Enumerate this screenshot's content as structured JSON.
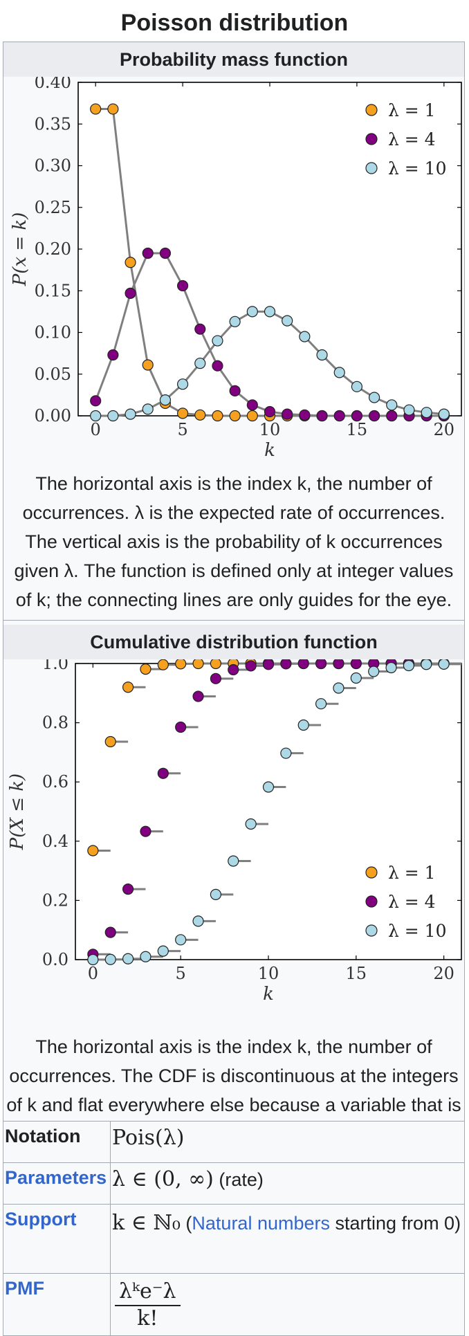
{
  "page_title": "Poisson distribution",
  "pmf_section": {
    "header": "Probability mass function",
    "caption": "The horizontal axis is the index k, the number of occurrences. λ is the expected rate of occurrences. The vertical axis is the probability of k occurrences given λ. The function is defined only at integer values of k; the connecting lines are only guides for the eye."
  },
  "cdf_section": {
    "header": "Cumulative distribution function",
    "caption": "The horizontal axis is the index k, the number of occurrences. The CDF is discontinuous at the integers of k and flat everywhere else because a variable that is Poisson distributed takes on only integer values."
  },
  "colors": {
    "lambda1": "#f5a11f",
    "lambda4": "#800080",
    "lambda10": "#add8e6",
    "line": "#7f7f7f",
    "link": "#3366cc"
  },
  "chart_data": [
    {
      "type": "line",
      "title": "Probability mass function",
      "xlabel": "k",
      "ylabel": "P(x = k)",
      "xlim": [
        -1,
        21
      ],
      "ylim": [
        0,
        0.4
      ],
      "xticks": [
        "0",
        "5",
        "10",
        "15",
        "20"
      ],
      "yticks": [
        "0.00",
        "0.05",
        "0.10",
        "0.15",
        "0.20",
        "0.25",
        "0.30",
        "0.35",
        "0.40"
      ],
      "legend_position": "top-right",
      "x": [
        0,
        1,
        2,
        3,
        4,
        5,
        6,
        7,
        8,
        9,
        10,
        11,
        12,
        13,
        14,
        15,
        16,
        17,
        18,
        19,
        20
      ],
      "series": [
        {
          "name": "λ = 1",
          "values": [
            0.368,
            0.368,
            0.184,
            0.061,
            0.015,
            0.003,
            0.001,
            0.0,
            0.0,
            0.0,
            0.0,
            0.0,
            0.0,
            0.0,
            0.0,
            0.0,
            0.0,
            0.0,
            0.0,
            0.0,
            0.0
          ]
        },
        {
          "name": "λ = 4",
          "values": [
            0.018,
            0.073,
            0.147,
            0.195,
            0.195,
            0.156,
            0.104,
            0.06,
            0.03,
            0.013,
            0.005,
            0.002,
            0.001,
            0.0,
            0.0,
            0.0,
            0.0,
            0.0,
            0.0,
            0.0,
            0.0
          ]
        },
        {
          "name": "λ = 10",
          "values": [
            0.0,
            0.0,
            0.002,
            0.008,
            0.019,
            0.038,
            0.063,
            0.09,
            0.113,
            0.125,
            0.125,
            0.114,
            0.095,
            0.073,
            0.052,
            0.035,
            0.022,
            0.013,
            0.007,
            0.004,
            0.002
          ]
        }
      ]
    },
    {
      "type": "scatter",
      "title": "Cumulative distribution function",
      "xlabel": "k",
      "ylabel": "P(X ≤ k)",
      "xlim": [
        -1,
        21
      ],
      "ylim": [
        0,
        1.0
      ],
      "xticks": [
        "0",
        "5",
        "10",
        "15",
        "20"
      ],
      "yticks": [
        "0.0",
        "0.2",
        "0.4",
        "0.6",
        "0.8",
        "1.0"
      ],
      "legend_position": "lower-right",
      "x": [
        0,
        1,
        2,
        3,
        4,
        5,
        6,
        7,
        8,
        9,
        10,
        11,
        12,
        13,
        14,
        15,
        16,
        17,
        18,
        19,
        20
      ],
      "series": [
        {
          "name": "λ = 1",
          "values": [
            0.368,
            0.736,
            0.92,
            0.981,
            0.996,
            0.999,
            1.0,
            1.0,
            1.0,
            1.0,
            1.0,
            1.0,
            1.0,
            1.0,
            1.0,
            1.0,
            1.0,
            1.0,
            1.0,
            1.0,
            1.0
          ]
        },
        {
          "name": "λ = 4",
          "values": [
            0.018,
            0.092,
            0.238,
            0.433,
            0.629,
            0.785,
            0.889,
            0.949,
            0.979,
            0.992,
            0.997,
            0.999,
            1.0,
            1.0,
            1.0,
            1.0,
            1.0,
            1.0,
            1.0,
            1.0,
            1.0
          ]
        },
        {
          "name": "λ = 10",
          "values": [
            0.0,
            0.0005,
            0.003,
            0.01,
            0.029,
            0.067,
            0.13,
            0.22,
            0.333,
            0.458,
            0.583,
            0.697,
            0.792,
            0.864,
            0.917,
            0.951,
            0.973,
            0.986,
            0.993,
            0.997,
            0.998
          ]
        }
      ]
    }
  ],
  "properties": {
    "notation": {
      "label": "Notation",
      "value": "Pois(λ)"
    },
    "parameters": {
      "label": "Parameters",
      "value": "λ ∈ (0, ∞)",
      "note": "(rate)"
    },
    "support": {
      "label": "Support",
      "value": "k ∈ ℕ₀",
      "link": "Natural numbers",
      "note": "starting from 0"
    },
    "pmf": {
      "label": "PMF",
      "numerator": "λᵏe⁻λ",
      "denominator": "k!"
    }
  }
}
